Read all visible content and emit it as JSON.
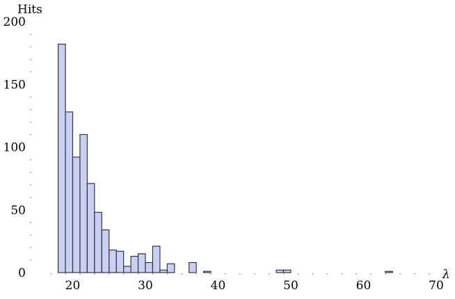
{
  "chart_data": {
    "type": "bar",
    "title": "",
    "xlabel": "λ",
    "ylabel": "Hits",
    "xlim": [
      16,
      72
    ],
    "ylim": [
      0,
      200
    ],
    "x_ticks": [
      20,
      30,
      40,
      50,
      60,
      70
    ],
    "y_ticks": [
      0,
      50,
      100,
      150,
      200
    ],
    "grid": false,
    "bin_width": 1,
    "series": [
      {
        "bin_start": [
          18,
          19,
          20,
          21,
          22,
          23,
          24,
          25,
          26,
          27,
          28,
          29,
          30,
          31,
          32,
          33,
          36,
          38,
          48,
          49,
          63
        ],
        "values": [
          182,
          128,
          92,
          110,
          71,
          48,
          34,
          18,
          17,
          5,
          13,
          15,
          8,
          21,
          2,
          7,
          8,
          1,
          2,
          2,
          1
        ]
      }
    ],
    "colors": {
      "bar_fill": "#c9d0f2",
      "bar_stroke": "#333344"
    }
  }
}
